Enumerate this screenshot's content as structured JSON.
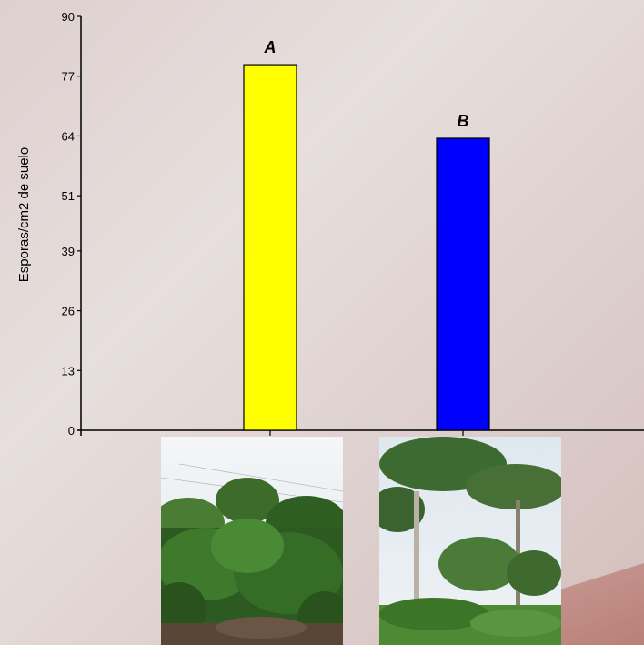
{
  "chart_data": {
    "type": "bar",
    "categories": [
      "A",
      "B"
    ],
    "values": [
      79.5,
      63.5
    ],
    "colors": [
      "#ffff00",
      "#0000ff"
    ],
    "bar_labels": [
      "A",
      "B"
    ],
    "ylabel": "Esporas/cm2 de suelo",
    "xlabel": "",
    "ylim": [
      0,
      90
    ],
    "yticks": [
      0,
      13,
      26,
      39,
      51,
      64,
      77,
      90
    ],
    "grid": false
  },
  "photos": [
    {
      "name": "coffee-plantation-photo"
    },
    {
      "name": "forest-trees-photo"
    }
  ]
}
